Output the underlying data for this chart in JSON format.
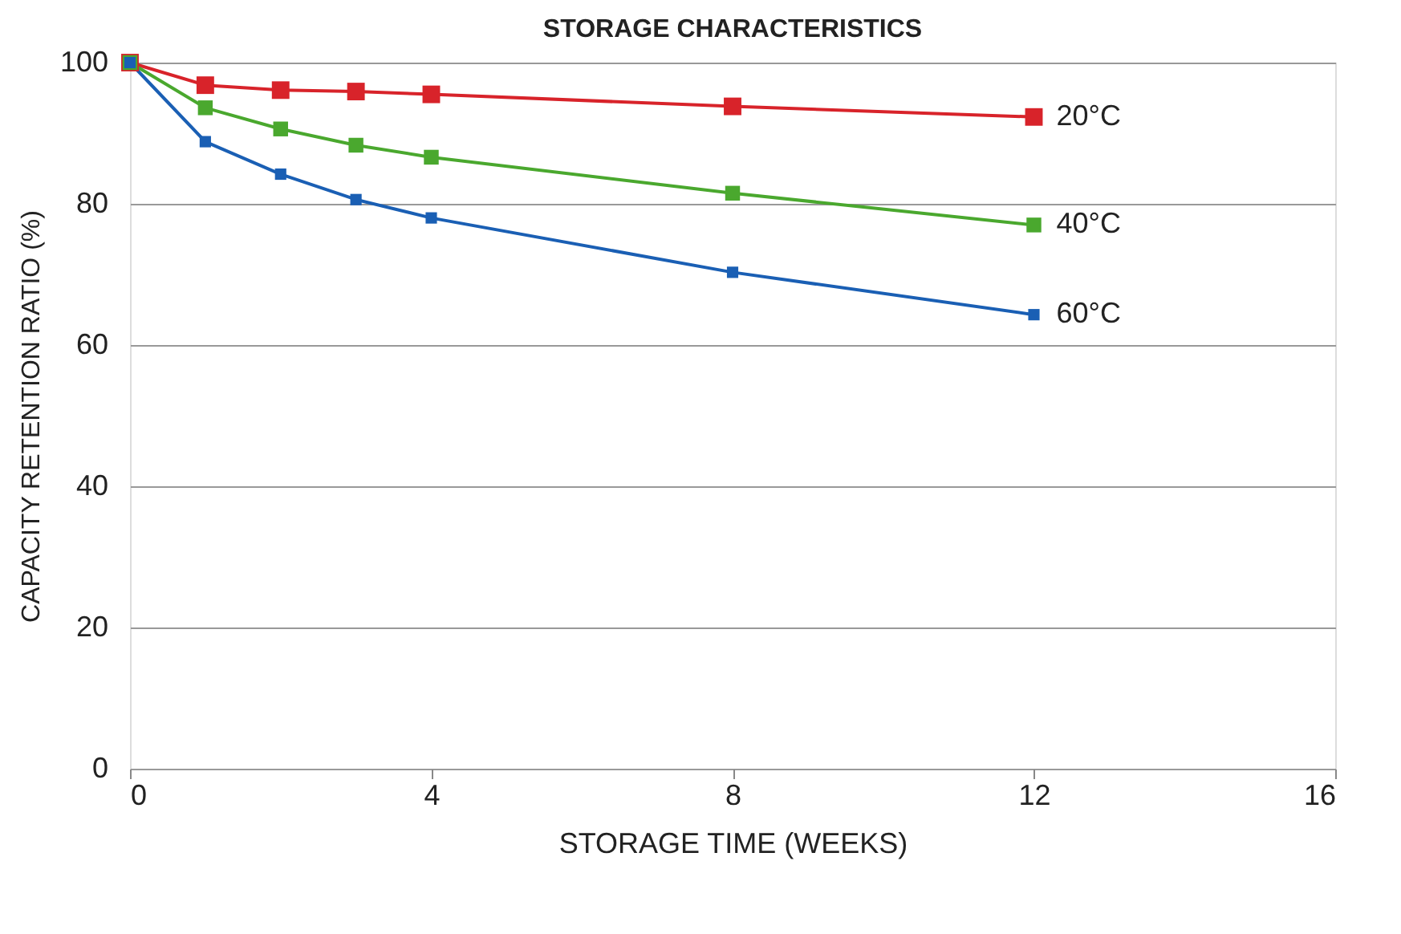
{
  "chart_data": {
    "type": "line",
    "title": "STORAGE CHARACTERISTICS",
    "xlabel": "STORAGE TIME (WEEKS)",
    "ylabel": "CAPACITY RETENTION RATIO (%)",
    "x": [
      0,
      1,
      2,
      3,
      4,
      8,
      12
    ],
    "series": [
      {
        "name": "20°C",
        "color": "#d8232a",
        "values": [
          100,
          96.8,
          96.1,
          95.9,
          95.5,
          93.8,
          92.3
        ]
      },
      {
        "name": "40°C",
        "color": "#4aa82e",
        "values": [
          100,
          93.6,
          90.6,
          88.3,
          86.6,
          81.5,
          77.0
        ]
      },
      {
        "name": "60°C",
        "color": "#1a5fb4",
        "values": [
          100,
          88.8,
          84.2,
          80.6,
          78.0,
          70.3,
          64.3
        ]
      }
    ],
    "xlim": [
      0,
      16
    ],
    "xticks": [
      0,
      4,
      8,
      12,
      16
    ],
    "ylim": [
      0,
      100
    ],
    "yticks": [
      0,
      20,
      40,
      60,
      80,
      100
    ],
    "grid": "y",
    "legend": false,
    "marker": "square",
    "line_style": "solid"
  }
}
